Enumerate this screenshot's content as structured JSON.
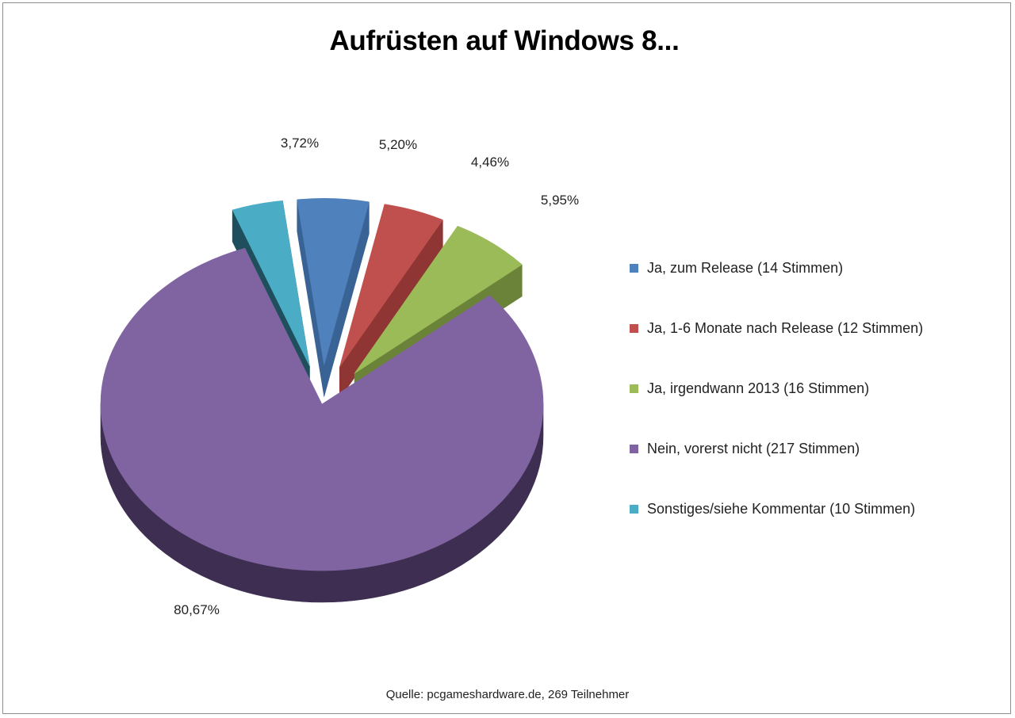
{
  "title": "Aufrüsten auf Windows 8...",
  "source": "Quelle: pcgameshardware.de, 269 Teilnehmer",
  "chart_data": {
    "type": "pie",
    "title": "Aufrüsten auf Windows 8...",
    "three_d": true,
    "exploded": true,
    "legend_position": "right",
    "slices": [
      {
        "name": "Ja, zum  Release  (14 Stimmen)",
        "votes": 14,
        "value": 5.2,
        "label": "5,20%",
        "color": "#4f81bd",
        "side_color": "#3a6395"
      },
      {
        "name": "Ja, 1-6 Monate nach Release (12 Stimmen)",
        "votes": 12,
        "value": 4.46,
        "label": "4,46%",
        "color": "#c0504d",
        "side_color": "#8f3533"
      },
      {
        "name": "Ja, irgendwann 2013 (16 Stimmen)",
        "votes": 16,
        "value": 5.95,
        "label": "5,95%",
        "color": "#9bbb59",
        "side_color": "#6a8338"
      },
      {
        "name": "Nein, vorerst nicht (217 Stimmen)",
        "votes": 217,
        "value": 80.67,
        "label": "80,67%",
        "color": "#8064a2",
        "side_color": "#3e2f52"
      },
      {
        "name": "Sonstiges/siehe Kommentar (10 Stimmen)",
        "votes": 10,
        "value": 3.72,
        "label": "3,72%",
        "color": "#4bacc6",
        "side_color": "#1f4f5d"
      }
    ]
  }
}
